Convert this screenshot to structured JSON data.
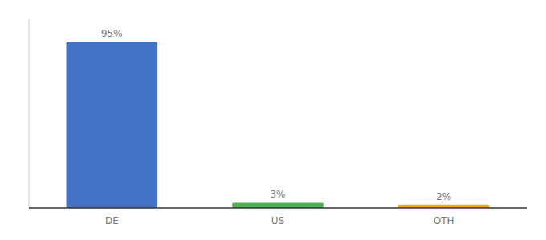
{
  "chart_data": {
    "type": "bar",
    "categories": [
      "DE",
      "US",
      "OTH"
    ],
    "values": [
      95,
      3,
      2
    ],
    "value_labels": [
      "95%",
      "3%",
      "2%"
    ],
    "colors": [
      "#4472C4",
      "#4CAF50",
      "#FFA500"
    ],
    "ylim": [
      0,
      108
    ],
    "data_labels": true,
    "tick_labels": "x",
    "grid": false
  }
}
